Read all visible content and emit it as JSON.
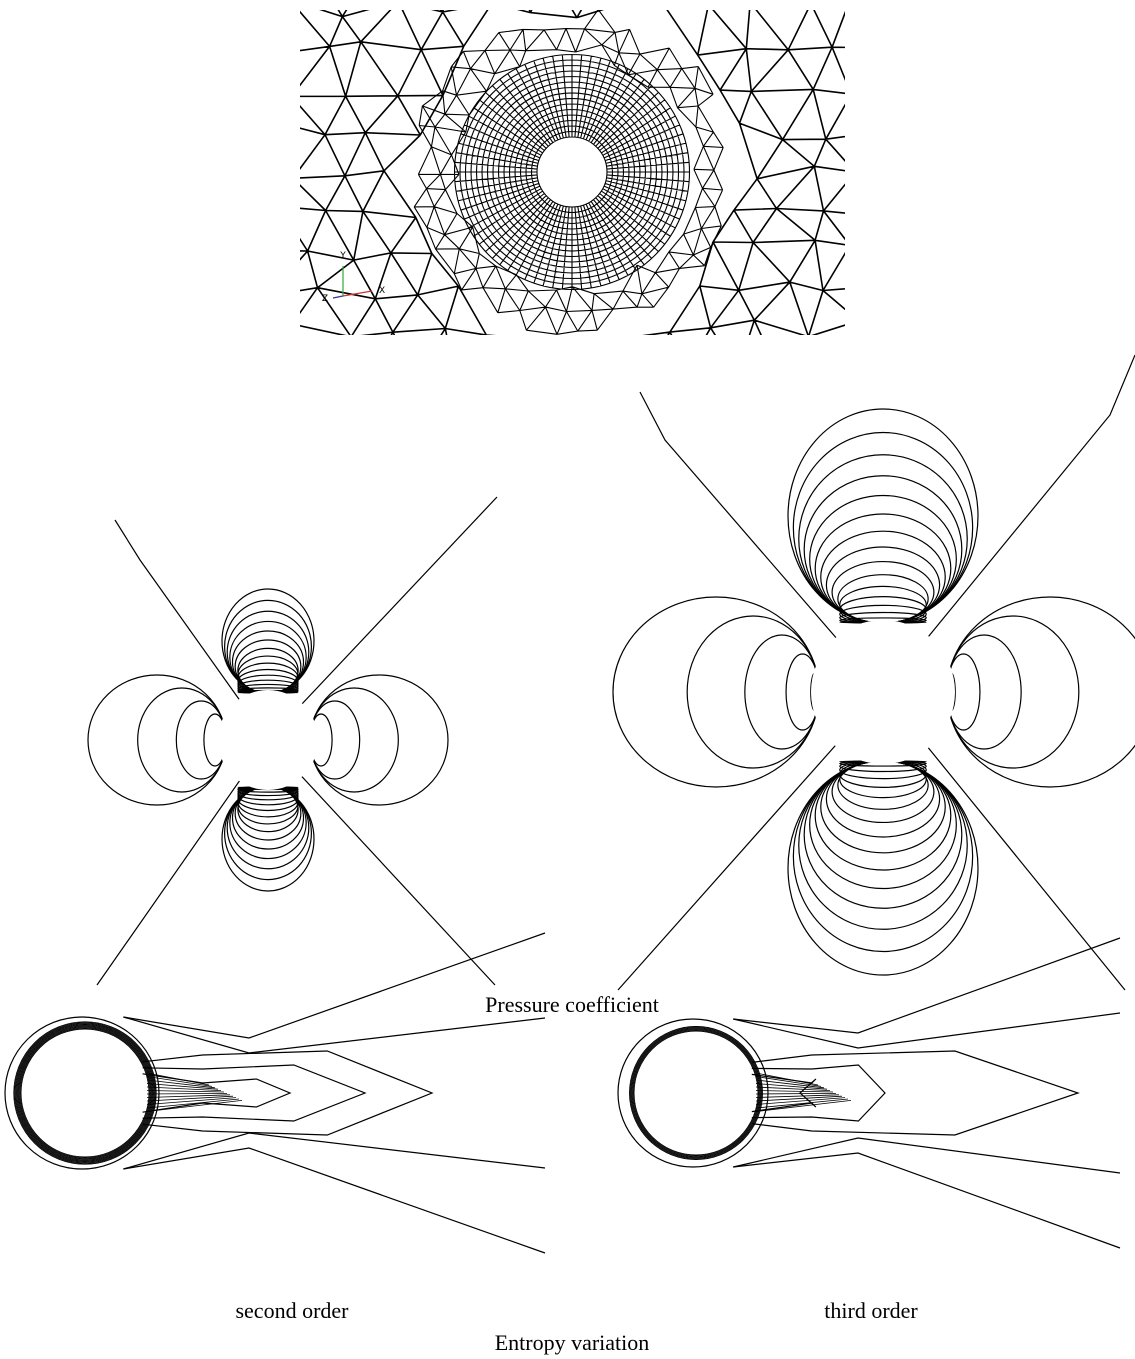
{
  "mesh_axes": {
    "y": "Y",
    "x": "X",
    "z": "Z"
  },
  "pressure_caption": "Pressure coefficient",
  "entropy_panels": [
    "second order",
    "third order"
  ],
  "entropy_caption": "Entropy variation"
}
